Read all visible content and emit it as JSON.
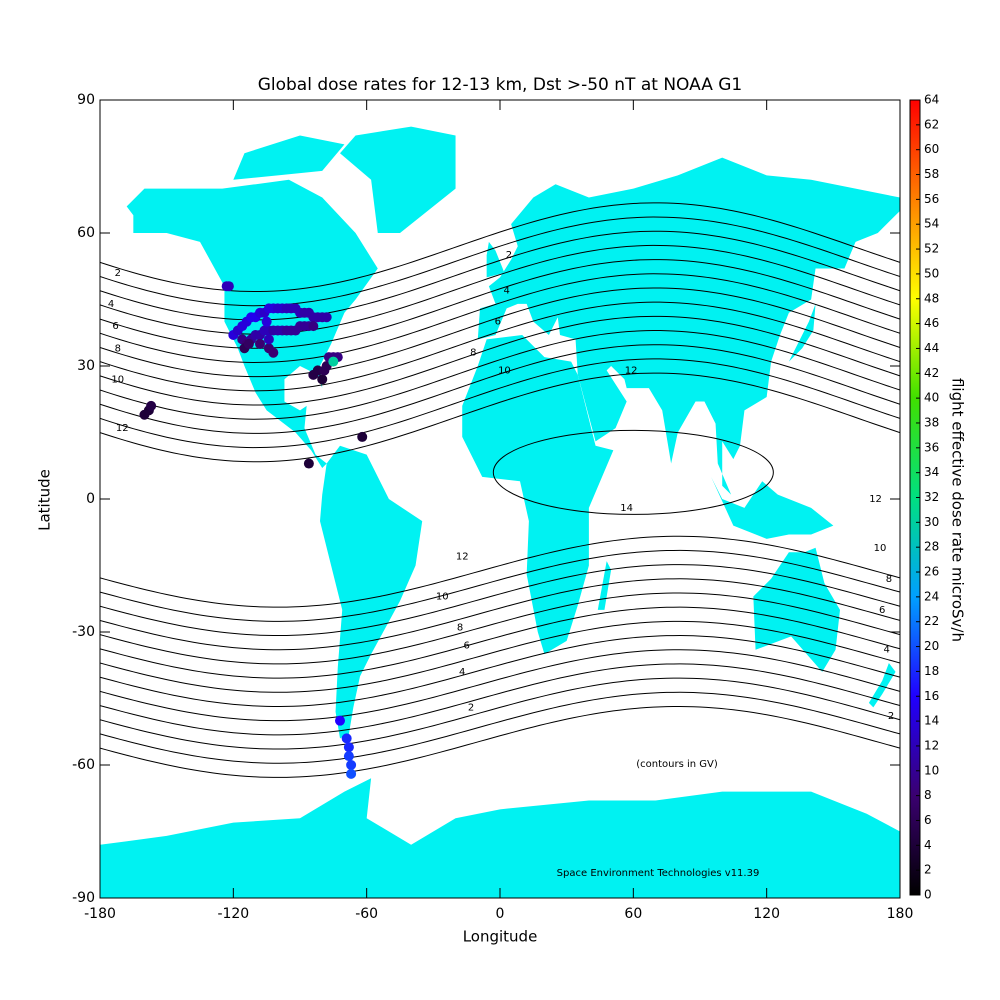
{
  "chart_data": {
    "type": "map",
    "title": "Global dose rates for 12-13 km, Dst >-50 nT at NOAA G1",
    "xlabel": "Longitude",
    "ylabel": "Latitude",
    "colorbar_label": "flight effective dose rate microSv/h",
    "annotations": [
      "(contours in GV)",
      "Space Environment Technologies v11.39"
    ],
    "land_color": "#00f2f2",
    "xlim": [
      -180,
      180
    ],
    "ylim": [
      -90,
      90
    ],
    "xticks": [
      -180,
      -120,
      -60,
      0,
      60,
      120,
      180
    ],
    "yticks": [
      -90,
      -60,
      -30,
      0,
      30,
      60,
      90
    ],
    "clim": [
      0,
      64
    ],
    "cticks": [
      0,
      2,
      4,
      6,
      8,
      10,
      12,
      14,
      16,
      18,
      20,
      22,
      24,
      26,
      28,
      30,
      32,
      34,
      36,
      38,
      40,
      42,
      44,
      46,
      48,
      50,
      52,
      54,
      56,
      58,
      60,
      62,
      64
    ],
    "colormap": [
      "#000000",
      "#3a0070",
      "#2000ff",
      "#00a0ff",
      "#00e080",
      "#40e000",
      "#ffff00",
      "#ff8000",
      "#ff0000"
    ],
    "contour_levels": [
      1,
      2,
      3,
      4,
      5,
      6,
      7,
      8,
      9,
      10,
      11,
      12,
      13,
      14
    ],
    "contour_labels": [
      {
        "value": 2,
        "lon": -172,
        "lat": 51
      },
      {
        "value": 2,
        "lon": 4,
        "lat": 55
      },
      {
        "value": 4,
        "lon": -175,
        "lat": 44
      },
      {
        "value": 4,
        "lon": 3,
        "lat": 47
      },
      {
        "value": 6,
        "lon": -173,
        "lat": 39
      },
      {
        "value": 6,
        "lon": -1,
        "lat": 40
      },
      {
        "value": 8,
        "lon": -172,
        "lat": 34
      },
      {
        "value": 8,
        "lon": -12,
        "lat": 33
      },
      {
        "value": 10,
        "lon": -172,
        "lat": 27
      },
      {
        "value": 10,
        "lon": 2,
        "lat": 29
      },
      {
        "value": 12,
        "lon": -170,
        "lat": 16
      },
      {
        "value": 12,
        "lon": 59,
        "lat": 29
      },
      {
        "value": 14,
        "lon": 57,
        "lat": -2
      },
      {
        "value": 12,
        "lon": 169,
        "lat": 0
      },
      {
        "value": 12,
        "lon": -17,
        "lat": -13
      },
      {
        "value": 10,
        "lon": 171,
        "lat": -11
      },
      {
        "value": 10,
        "lon": -26,
        "lat": -22
      },
      {
        "value": 8,
        "lon": 175,
        "lat": -18
      },
      {
        "value": 8,
        "lon": -18,
        "lat": -29
      },
      {
        "value": 6,
        "lon": 172,
        "lat": -25
      },
      {
        "value": 6,
        "lon": -15,
        "lat": -33
      },
      {
        "value": 4,
        "lon": 174,
        "lat": -34
      },
      {
        "value": 4,
        "lon": -17,
        "lat": -39
      },
      {
        "value": 2,
        "lon": 176,
        "lat": -49
      },
      {
        "value": 2,
        "lon": -13,
        "lat": -47
      }
    ],
    "x": [
      -123,
      -122,
      -120,
      -118,
      -116,
      -114,
      -112,
      -110,
      -108,
      -106,
      -104,
      -102,
      -100,
      -98,
      -96,
      -94,
      -92,
      -90,
      -88,
      -86,
      -84,
      -82,
      -80,
      -78,
      -116,
      -114,
      -112,
      -110,
      -108,
      -106,
      -104,
      -102,
      -100,
      -98,
      -96,
      -94,
      -92,
      -90,
      -88,
      -86,
      -84,
      -115,
      -113,
      -108,
      -104,
      -102,
      -104,
      -105,
      -84,
      -82,
      -80,
      -79,
      -78,
      -77,
      -75,
      -73,
      -75,
      -160,
      -158,
      -157,
      -86,
      -62,
      -72,
      -69,
      -68,
      -68,
      -67,
      -67
    ],
    "y": [
      48,
      48,
      37,
      38,
      39,
      40,
      41,
      41,
      42,
      42,
      43,
      43,
      43,
      43,
      43,
      43,
      43,
      42,
      42,
      42,
      41,
      41,
      41,
      41,
      36,
      35,
      36,
      37,
      37,
      38,
      38,
      38,
      38,
      38,
      38,
      38,
      38,
      39,
      39,
      39,
      39,
      34,
      35,
      35,
      34,
      33,
      36,
      40,
      28,
      29,
      27,
      29,
      30,
      32,
      32,
      32,
      31,
      19,
      20,
      21,
      8,
      14,
      -50,
      -54,
      -56,
      -58,
      -60,
      -62
    ],
    "values": [
      12,
      12,
      14,
      13,
      14,
      14,
      15,
      15,
      14,
      13,
      14,
      14,
      13,
      13,
      12,
      12,
      12,
      12,
      11,
      11,
      11,
      11,
      11,
      11,
      9,
      8,
      10,
      11,
      11,
      12,
      12,
      11,
      11,
      11,
      10,
      10,
      10,
      10,
      10,
      10,
      9,
      6,
      7,
      8,
      8,
      8,
      12,
      14,
      5,
      5,
      4,
      6,
      6,
      9,
      9,
      9,
      30,
      4,
      4,
      5,
      4,
      4,
      16,
      18,
      18,
      19,
      19,
      20
    ]
  }
}
